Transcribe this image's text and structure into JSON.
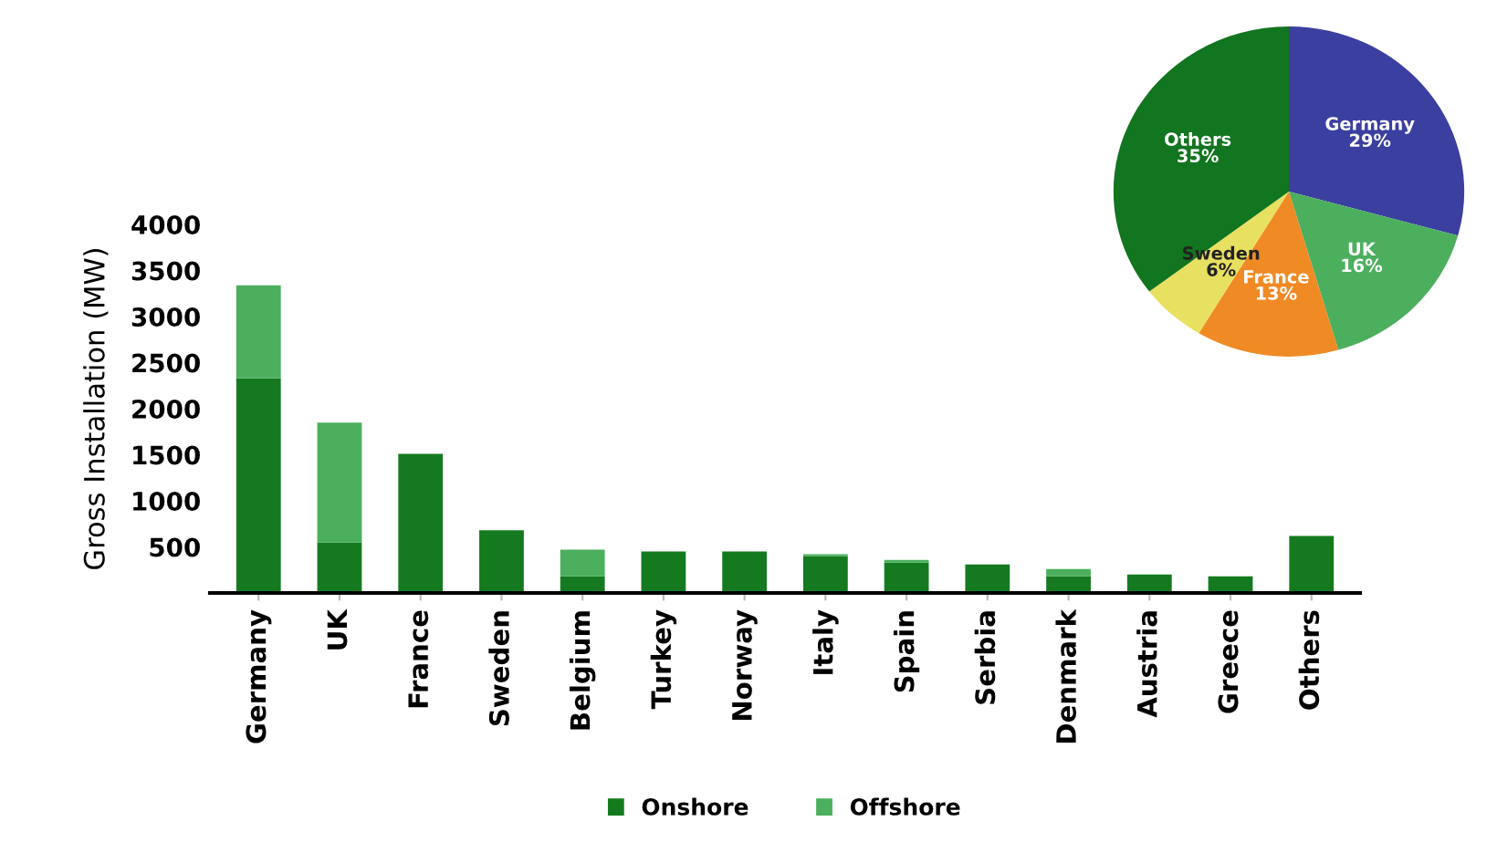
{
  "chart_data": [
    {
      "type": "bar",
      "stacked": true,
      "ylabel": "Gross Installation (MW)",
      "categories": [
        "Germany",
        "UK",
        "France",
        "Sweden",
        "Belgium",
        "Turkey",
        "Norway",
        "Italy",
        "Spain",
        "Serbia",
        "Denmark",
        "Austria",
        "Greece",
        "Others"
      ],
      "series": [
        {
          "name": "Onshore",
          "color": "#157a1f",
          "values": [
            2330,
            550,
            1510,
            680,
            180,
            450,
            450,
            400,
            330,
            310,
            180,
            200,
            180,
            620
          ]
        },
        {
          "name": "Offshore",
          "color": "#4caf5e",
          "values": [
            1010,
            1300,
            0,
            0,
            290,
            0,
            0,
            20,
            30,
            0,
            80,
            0,
            0,
            0
          ]
        }
      ],
      "ylim": [
        0,
        4000
      ],
      "yticks": [
        500,
        1000,
        1500,
        2000,
        2500,
        3000,
        3500,
        4000
      ],
      "grid": false,
      "legend": "bottom"
    },
    {
      "type": "pie",
      "categories": [
        "Germany",
        "UK",
        "France",
        "Sweden",
        "Others"
      ],
      "values": [
        29,
        16,
        13,
        6,
        35
      ],
      "colors": [
        "#3b3fa0",
        "#4caf5e",
        "#f08a24",
        "#e8e060",
        "#12751f"
      ],
      "value_labels": [
        "29%",
        "16%",
        "13%",
        "6%",
        "35%"
      ]
    }
  ]
}
